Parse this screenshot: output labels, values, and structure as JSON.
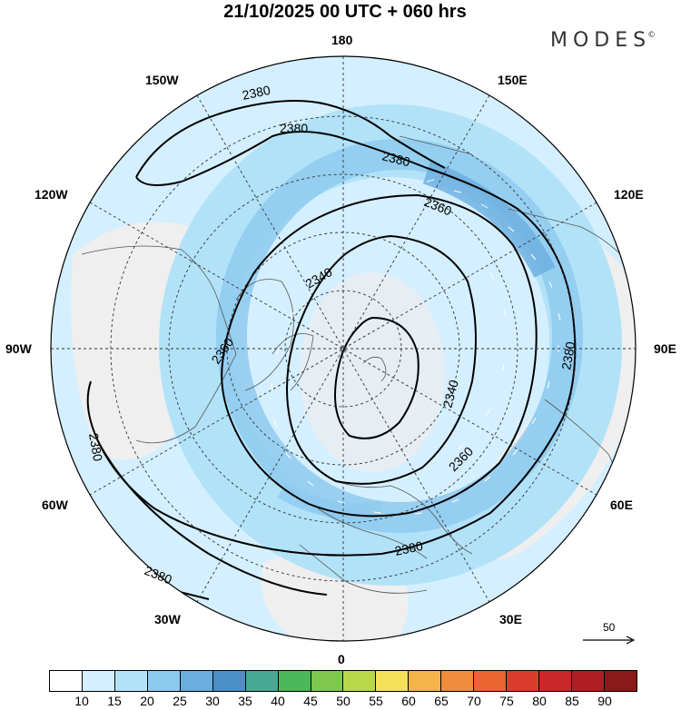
{
  "title": "21/10/2025  00 UTC  + 060 hrs",
  "logo": "MODES",
  "logo_mark": "©",
  "meridian_labels": [
    "180",
    "150W",
    "150E",
    "120W",
    "120E",
    "90W",
    "90E",
    "60W",
    "60E",
    "30W",
    "30E",
    "0"
  ],
  "contour_labels": [
    "2380",
    "2380",
    "2380",
    "2380",
    "2380",
    "2380",
    "2380",
    "2360",
    "2360",
    "2360",
    "2340",
    "2340"
  ],
  "reference_vector": {
    "label": "50",
    "icon": "arrow-right-icon"
  },
  "colorbar": {
    "colors": [
      "#ffffff",
      "#d4efff",
      "#b2e2f8",
      "#8ecaef",
      "#6aaee0",
      "#4b8fc8",
      "#49a894",
      "#4cb85a",
      "#7ec850",
      "#b9d94a",
      "#f5e05a",
      "#f5b44b",
      "#f08c3c",
      "#eb6432",
      "#dc3c2d",
      "#c82828",
      "#b01e23",
      "#8c1919"
    ],
    "tick_labels": [
      "10",
      "15",
      "20",
      "25",
      "30",
      "35",
      "40",
      "45",
      "50",
      "55",
      "60",
      "65",
      "70",
      "75",
      "80",
      "85",
      "90"
    ]
  }
}
